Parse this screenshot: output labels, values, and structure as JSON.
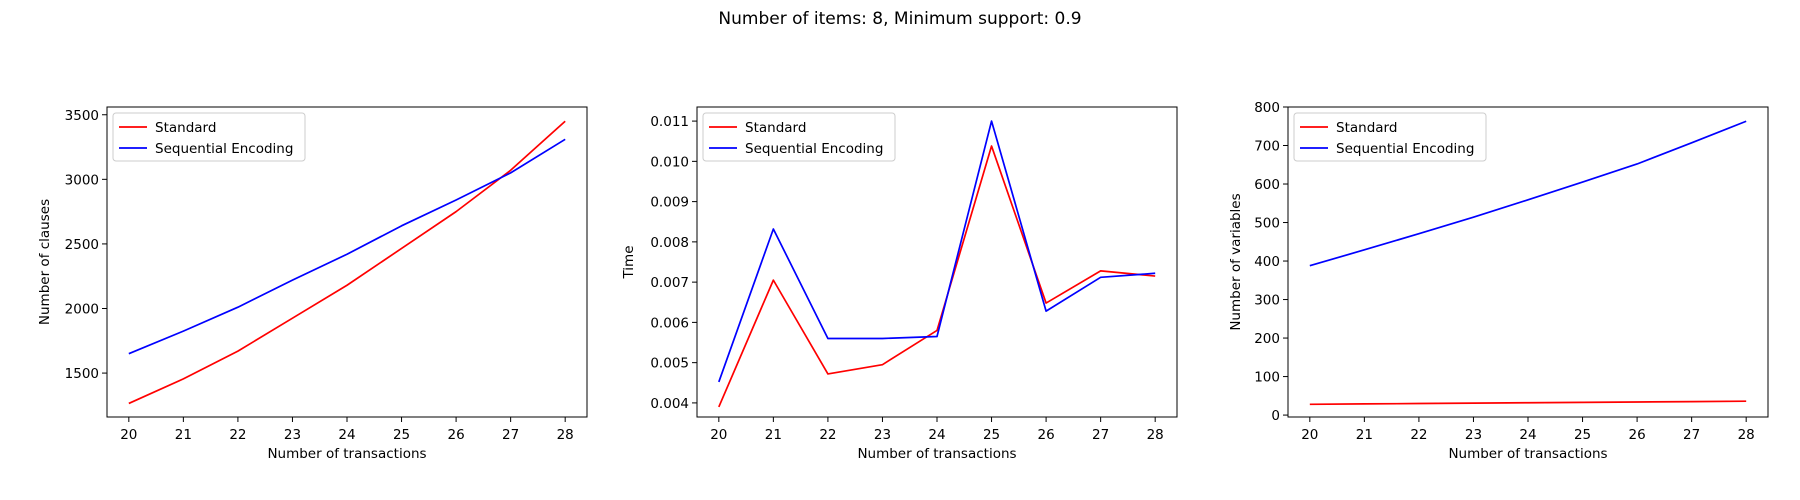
{
  "figure": {
    "title": "Number of items: 8, Minimum support: 0.9"
  },
  "chart_data": [
    {
      "type": "line",
      "title": "",
      "xlabel": "Number of transactions",
      "ylabel": "Number of clauses",
      "x": [
        20,
        21,
        22,
        23,
        24,
        25,
        26,
        27,
        28
      ],
      "xticks": [
        20,
        21,
        22,
        23,
        24,
        25,
        26,
        27,
        28
      ],
      "xlim": [
        19.6,
        28.4
      ],
      "yticks": [
        1500,
        2000,
        2500,
        3000,
        3500
      ],
      "ylim": [
        1160,
        3560
      ],
      "grid": false,
      "legend_position": "upper left",
      "series": [
        {
          "name": "Standard",
          "color": "#ff0000",
          "values": [
            1265,
            1455,
            1670,
            1925,
            2180,
            2465,
            2750,
            3070,
            3450
          ]
        },
        {
          "name": "Sequential Encoding",
          "color": "#0000ff",
          "values": [
            1650,
            1825,
            2010,
            2220,
            2420,
            2640,
            2840,
            3050,
            3310
          ]
        }
      ]
    },
    {
      "type": "line",
      "title": "",
      "xlabel": "Number of transactions",
      "ylabel": "Time",
      "x": [
        20,
        21,
        22,
        23,
        24,
        25,
        26,
        27,
        28
      ],
      "xticks": [
        20,
        21,
        22,
        23,
        24,
        25,
        26,
        27,
        28
      ],
      "xlim": [
        19.6,
        28.4
      ],
      "yticks": [
        0.004,
        0.005,
        0.006,
        0.007,
        0.008,
        0.009,
        0.01,
        0.011
      ],
      "yticklabels": [
        "0.004",
        "0.005",
        "0.006",
        "0.007",
        "0.008",
        "0.009",
        "0.010",
        "0.011"
      ],
      "ylim": [
        0.00365,
        0.01135
      ],
      "grid": false,
      "legend_position": "upper left",
      "series": [
        {
          "name": "Standard",
          "color": "#ff0000",
          "values": [
            0.0039,
            0.00705,
            0.00472,
            0.00495,
            0.0058,
            0.01038,
            0.00648,
            0.00728,
            0.00715
          ]
        },
        {
          "name": "Sequential Encoding",
          "color": "#0000ff",
          "values": [
            0.00452,
            0.00832,
            0.0056,
            0.0056,
            0.00565,
            0.011,
            0.00628,
            0.00712,
            0.00722
          ]
        }
      ]
    },
    {
      "type": "line",
      "title": "",
      "xlabel": "Number of transactions",
      "ylabel": "Number of variables",
      "x": [
        20,
        21,
        22,
        23,
        24,
        25,
        26,
        27,
        28
      ],
      "xticks": [
        20,
        21,
        22,
        23,
        24,
        25,
        26,
        27,
        28
      ],
      "xlim": [
        19.6,
        28.4
      ],
      "yticks": [
        0,
        100,
        200,
        300,
        400,
        500,
        600,
        700,
        800
      ],
      "ylim": [
        -5,
        800
      ],
      "grid": false,
      "legend_position": "upper left",
      "series": [
        {
          "name": "Standard",
          "color": "#ff0000",
          "values": [
            28,
            29,
            30,
            31,
            32,
            33,
            34,
            35,
            36
          ]
        },
        {
          "name": "Sequential Encoding",
          "color": "#0000ff",
          "values": [
            388,
            429,
            471,
            514,
            559,
            605,
            652,
            707,
            763
          ]
        }
      ]
    }
  ]
}
